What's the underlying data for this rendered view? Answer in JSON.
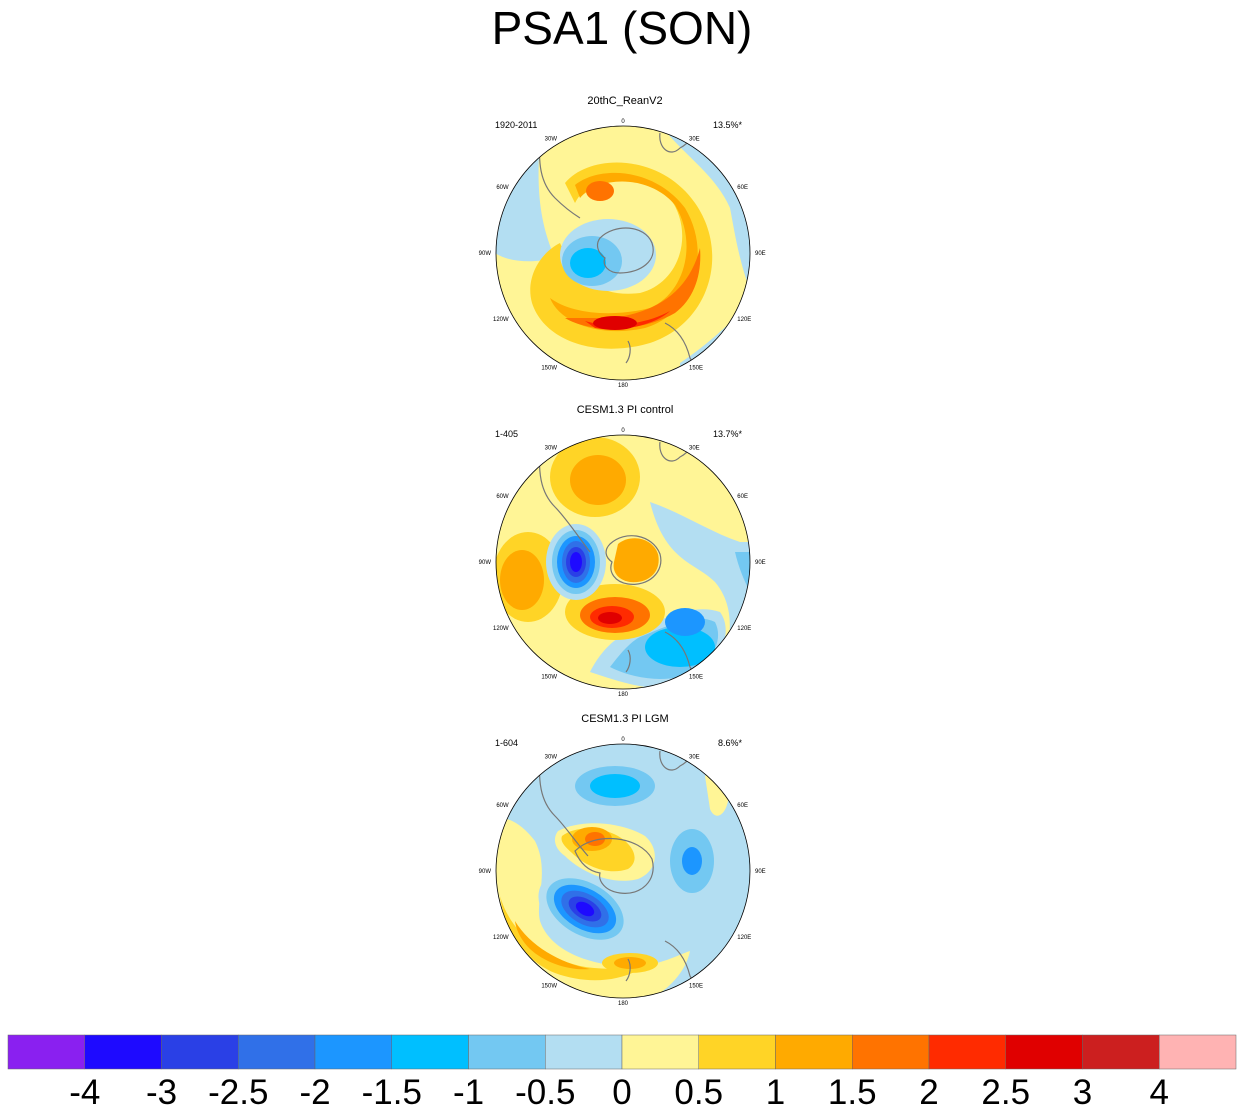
{
  "title": "PSA1 (SON)",
  "panels": [
    {
      "title": "20thC_ReanV2",
      "period": "1920-2011",
      "variance": "13.5%*",
      "lon_labels": [
        "0",
        "30E",
        "60E",
        "90E",
        "120E",
        "150E",
        "180",
        "150W",
        "120W",
        "90W",
        "60W",
        "30W"
      ]
    },
    {
      "title": "CESM1.3 PI control",
      "period": "1-405",
      "variance": "13.7%*",
      "lon_labels": [
        "0",
        "30E",
        "60E",
        "90E",
        "120E",
        "150E",
        "180",
        "150W",
        "120W",
        "90W",
        "60W",
        "30W"
      ]
    },
    {
      "title": "CESM1.3 PI LGM",
      "period": "1-604",
      "variance": "8.6%*",
      "lon_labels": [
        "0",
        "30E",
        "60E",
        "90E",
        "120E",
        "150E",
        "180",
        "150W",
        "120W",
        "90W",
        "60W",
        "30W"
      ]
    }
  ],
  "colorbar": {
    "colors": [
      "#8a20f0",
      "#1e0aff",
      "#2a40e6",
      "#3070e8",
      "#1c96ff",
      "#00bfff",
      "#73c8f2",
      "#b3def2",
      "#fff596",
      "#ffd426",
      "#ffaa00",
      "#ff7300",
      "#ff2b00",
      "#e00000",
      "#cc1f1f",
      "#ffb3b3"
    ],
    "labels": [
      "-4",
      "-3",
      "-2.5",
      "-2",
      "-1.5",
      "-1",
      "-0.5",
      "0",
      "0.5",
      "1",
      "1.5",
      "2",
      "2.5",
      "3",
      "4"
    ]
  },
  "map_colors": {
    "neg3": "#1e0aff",
    "neg25": "#2a40e6",
    "neg2": "#3070e8",
    "neg15": "#1c96ff",
    "neg1": "#00bfff",
    "neg05": "#73c8f2",
    "neg0": "#b3def2",
    "pos05": "#fff596",
    "pos1": "#ffd426",
    "pos15": "#ffaa00",
    "pos2": "#ff7300",
    "pos25": "#ff2b00",
    "pos3": "#e00000",
    "coast": "#777777"
  }
}
